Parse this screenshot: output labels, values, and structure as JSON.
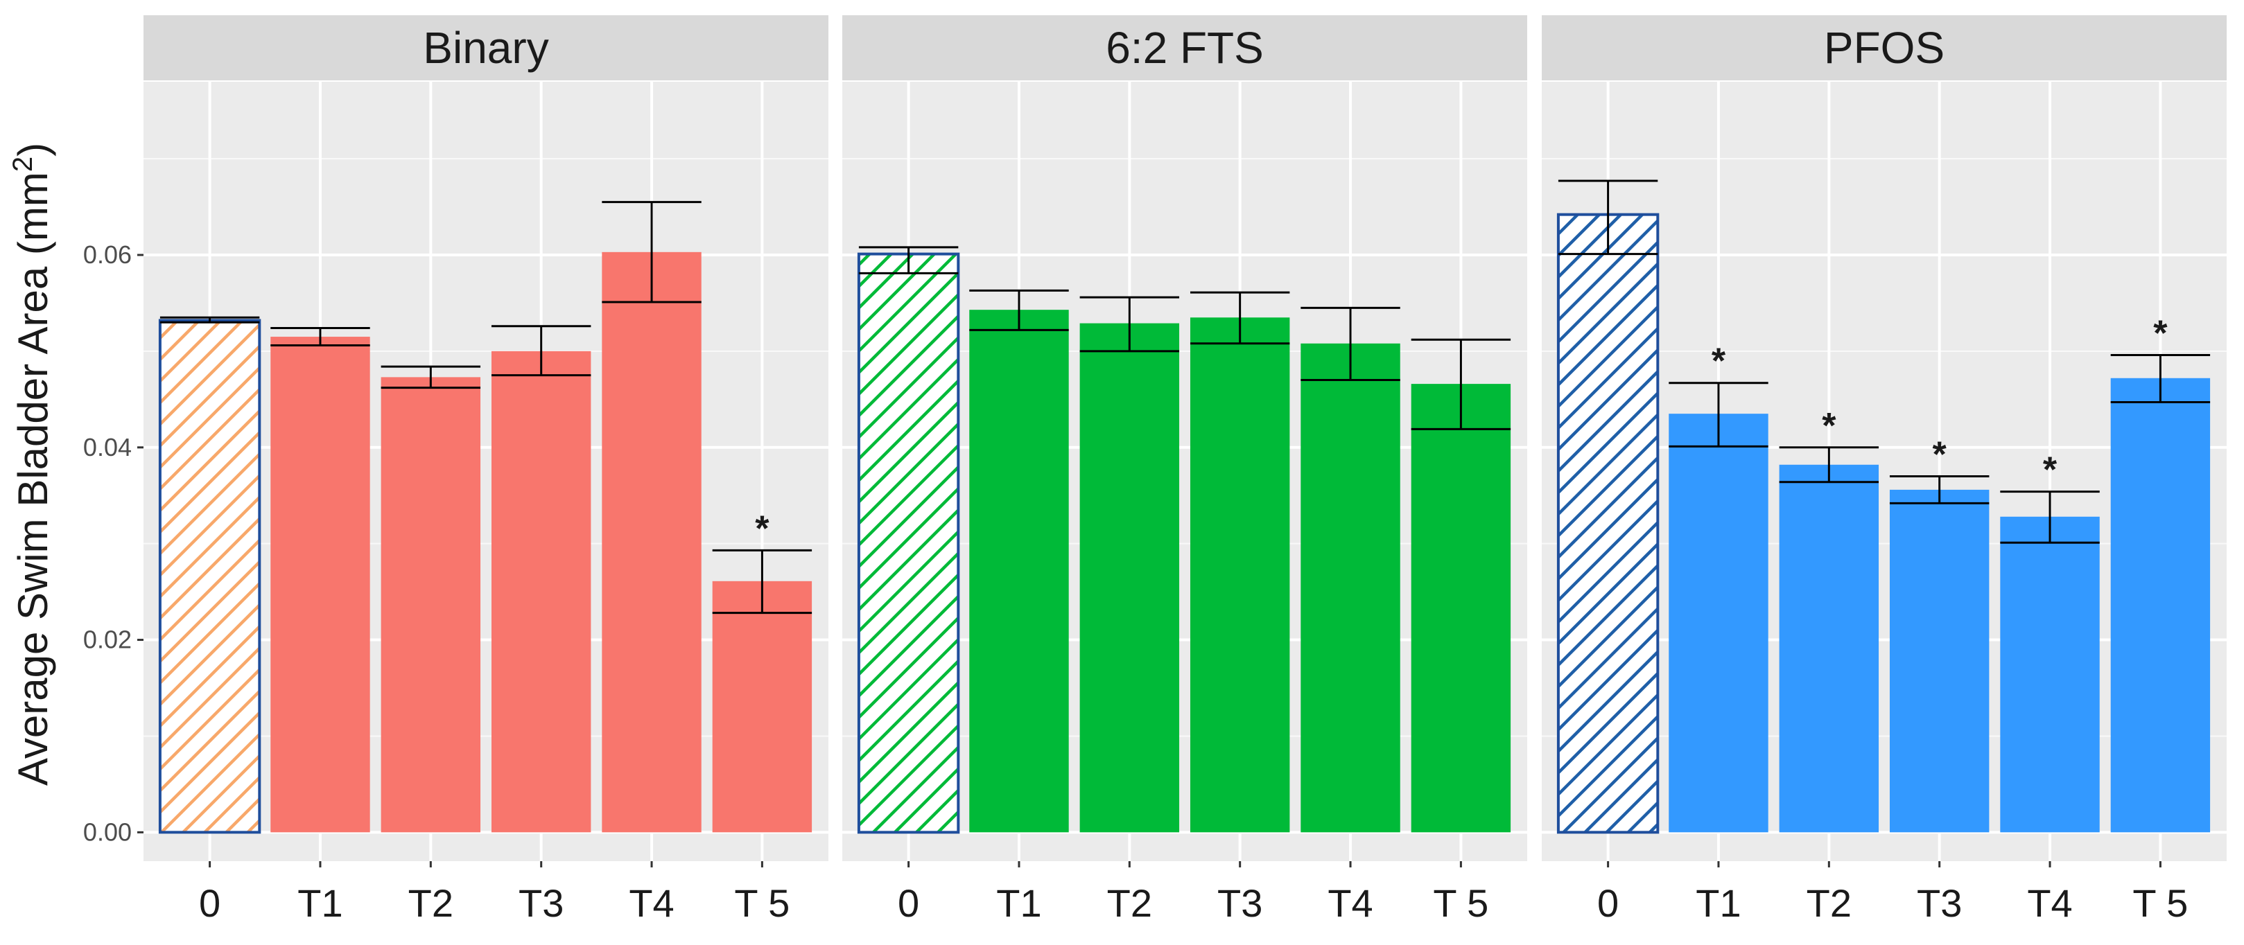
{
  "chart_data": {
    "type": "bar",
    "ylabel": "Average Swim Bladder Area (mm",
    "ylabel_superscript": "2",
    "ylabel_close": ")",
    "ylim": [
      -0.003,
      0.078
    ],
    "yticks": [
      0.0,
      0.02,
      0.04,
      0.06
    ],
    "ytick_labels": [
      "0.00",
      "0.02",
      "0.04",
      "0.06"
    ],
    "categories": [
      "0",
      "T1",
      "T2",
      "T3",
      "T4",
      "T 5"
    ],
    "grid": true,
    "background_color": "#ebebeb",
    "strip_color": "#d9d9d9",
    "grid_color": "#ffffff",
    "control_outline_color": "#1f4e9c",
    "significance_marker": "*",
    "panels": [
      {
        "title": "Binary",
        "color": "#f8766d",
        "control_hatch_color": "#f8a86a",
        "values": [
          0.0532,
          0.0515,
          0.0473,
          0.05,
          0.0603,
          0.0261
        ],
        "error_low": [
          0.053,
          0.0506,
          0.0462,
          0.0475,
          0.0551,
          0.0228
        ],
        "error_high": [
          0.0535,
          0.0524,
          0.0484,
          0.0526,
          0.0655,
          0.0293
        ],
        "significant": [
          false,
          false,
          false,
          false,
          false,
          true
        ]
      },
      {
        "title": "6:2 FTS",
        "color": "#00ba38",
        "control_hatch_color": "#00ba38",
        "values": [
          0.0601,
          0.0543,
          0.0529,
          0.0535,
          0.0508,
          0.0466
        ],
        "error_low": [
          0.0581,
          0.0522,
          0.05,
          0.0508,
          0.047,
          0.0419
        ],
        "error_high": [
          0.0608,
          0.0563,
          0.0556,
          0.0561,
          0.0545,
          0.0512
        ],
        "significant": [
          false,
          false,
          false,
          false,
          false,
          false
        ]
      },
      {
        "title": "PFOS",
        "color": "#3399ff",
        "control_hatch_color": "#1f5fa8",
        "values": [
          0.0642,
          0.0435,
          0.0382,
          0.0356,
          0.0328,
          0.0472
        ],
        "error_low": [
          0.0601,
          0.0401,
          0.0364,
          0.0342,
          0.0301,
          0.0447
        ],
        "error_high": [
          0.0677,
          0.0467,
          0.04,
          0.037,
          0.0354,
          0.0496
        ],
        "significant": [
          false,
          true,
          true,
          true,
          true,
          true
        ]
      }
    ]
  }
}
